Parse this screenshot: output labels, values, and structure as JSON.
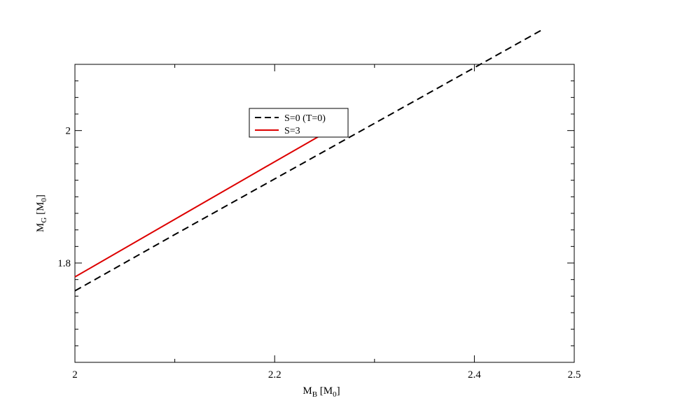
{
  "chart_data": {
    "type": "line",
    "xlabel": {
      "main": "M",
      "sub": "B",
      "unit_main": "M",
      "unit_sub": "0"
    },
    "ylabel": {
      "main": "M",
      "sub": "G",
      "unit_main": "M",
      "unit_sub": "0"
    },
    "xlim": [
      2.0,
      2.5
    ],
    "ylim": [
      1.65,
      2.1
    ],
    "xticks": [
      2.0,
      2.2,
      2.4,
      2.5
    ],
    "xtick_labels": [
      "2",
      "2.2",
      "2.4",
      "2.5"
    ],
    "x_minor_ticks": [
      2.1,
      2.3
    ],
    "yticks": [
      1.8,
      2.0
    ],
    "ytick_labels": [
      "1.8",
      "2"
    ],
    "y_minor_ticks": [
      1.675,
      1.7,
      1.725,
      1.75,
      1.775,
      1.825,
      1.85,
      1.875,
      1.9,
      1.925,
      1.95,
      1.975,
      2.025,
      2.05,
      2.075
    ],
    "grid": false,
    "legend_position": "top-center",
    "series": [
      {
        "name": "S=0 (T=0)",
        "color": "#000000",
        "style": "dashed",
        "points": [
          [
            2.0,
            1.758
          ],
          [
            2.1,
            1.843
          ],
          [
            2.2,
            1.927
          ],
          [
            2.3,
            2.011
          ],
          [
            2.4,
            2.095
          ],
          [
            2.47,
            2.154
          ]
        ]
      },
      {
        "name": "S=3",
        "color": "#dd0000",
        "style": "solid",
        "points": [
          [
            2.0,
            1.779
          ],
          [
            2.1,
            1.866
          ],
          [
            2.2,
            1.953
          ],
          [
            2.273,
            2.016
          ]
        ]
      }
    ]
  }
}
